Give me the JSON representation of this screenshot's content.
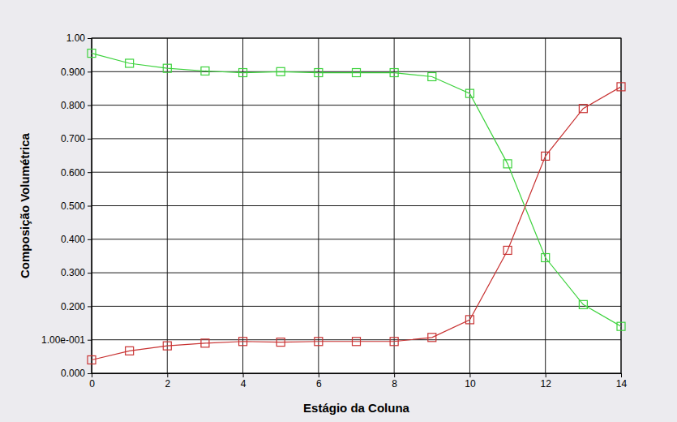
{
  "chart_data": {
    "type": "line",
    "x_label": "Estágio da Coluna",
    "y_label": "Composição Volumétrica",
    "x": [
      0,
      1,
      2,
      3,
      4,
      5,
      6,
      7,
      8,
      9,
      10,
      11,
      12,
      13,
      14
    ],
    "series": [
      {
        "color": "#3cd23c",
        "marker": "square",
        "values": [
          0.955,
          0.925,
          0.91,
          0.902,
          0.897,
          0.9,
          0.897,
          0.897,
          0.897,
          0.885,
          0.835,
          0.625,
          0.345,
          0.205,
          0.14
        ]
      },
      {
        "color": "#c83232",
        "marker": "square",
        "values": [
          0.04,
          0.067,
          0.082,
          0.09,
          0.095,
          0.093,
          0.095,
          0.095,
          0.095,
          0.107,
          0.16,
          0.367,
          0.648,
          0.79,
          0.855
        ]
      }
    ],
    "xlim": [
      0,
      14
    ],
    "xticks": [
      0,
      2,
      4,
      6,
      8,
      10,
      12,
      14
    ],
    "ylim": [
      0,
      1
    ],
    "yticks": [
      {
        "value": 0,
        "label": "0.000"
      },
      {
        "value": 0.1,
        "label": "1.00e-001"
      },
      {
        "value": 0.2,
        "label": "0.200"
      },
      {
        "value": 0.3,
        "label": "0.300"
      },
      {
        "value": 0.4,
        "label": "0.400"
      },
      {
        "value": 0.5,
        "label": "0.500"
      },
      {
        "value": 0.6,
        "label": "0.600"
      },
      {
        "value": 0.7,
        "label": "0.700"
      },
      {
        "value": 0.8,
        "label": "0.800"
      },
      {
        "value": 0.9,
        "label": "0.900"
      },
      {
        "value": 1,
        "label": "1.00"
      }
    ],
    "grid": true
  }
}
